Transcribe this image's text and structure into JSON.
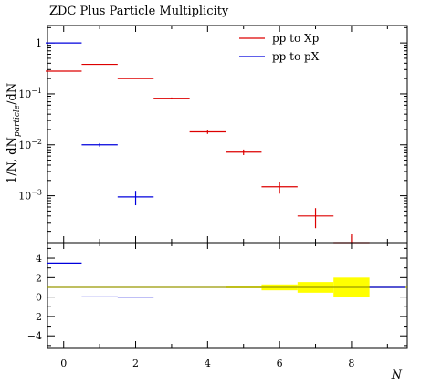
{
  "chart_data": {
    "type": "line",
    "title": "ZDC Plus Particle Multiplicity",
    "xlabel": "N",
    "ylabel_prefix": "1/N, dN",
    "ylabel_subscript": "particle",
    "ylabel_suffix": "/dN",
    "xlim": [
      -0.45,
      9.55
    ],
    "main_panel": {
      "yscale": "log",
      "ylim": [
        0.00012,
        2.2
      ],
      "x_ticks": [
        0,
        2,
        4,
        6,
        8
      ],
      "y_ticks": [
        {
          "value": 1,
          "label": "1"
        },
        {
          "value": 0.1,
          "label": "10",
          "exp": "−1"
        },
        {
          "value": 0.01,
          "label": "10",
          "exp": "−2"
        },
        {
          "value": 0.001,
          "label": "10",
          "exp": "−3"
        }
      ],
      "series": [
        {
          "name": "pp to Xp",
          "color": "#dd0000",
          "points": [
            {
              "x": 0,
              "y": 0.28,
              "yerr": 0
            },
            {
              "x": 1,
              "y": 0.38,
              "yerr": 0
            },
            {
              "x": 2,
              "y": 0.2,
              "yerr": 0
            },
            {
              "x": 3,
              "y": 0.082,
              "yerr": 0.003
            },
            {
              "x": 4,
              "y": 0.018,
              "yerr": 0.0016
            },
            {
              "x": 5,
              "y": 0.0072,
              "yerr": 0.0009
            },
            {
              "x": 6,
              "y": 0.0015,
              "yerr": 0.0004
            },
            {
              "x": 7,
              "y": 0.0004,
              "yerr": 0.00017
            },
            {
              "x": 8,
              "y": 0.00012,
              "yerr": 6e-05
            }
          ]
        },
        {
          "name": "pp to pX",
          "color": "#0000dd",
          "points": [
            {
              "x": 0,
              "y": 1.0,
              "yerr": 0
            },
            {
              "x": 1,
              "y": 0.01,
              "yerr": 0.0008
            },
            {
              "x": 2,
              "y": 0.00095,
              "yerr": 0.0003
            }
          ]
        }
      ]
    },
    "ratio_panel": {
      "ylim": [
        -5.2,
        5.6
      ],
      "y_ticks": [
        4,
        2,
        0,
        -2,
        -4
      ],
      "y_tick_labels": [
        "4",
        "2",
        "0",
        "−2",
        "−4"
      ],
      "reference_value": 1,
      "band_color": "#ffff00",
      "reference_color": "#999900",
      "band": [
        {
          "x": 5,
          "half_width": 0.08
        },
        {
          "x": 6,
          "half_width": 0.3
        },
        {
          "x": 7,
          "half_width": 0.55
        },
        {
          "x": 8,
          "half_width": 1.0
        }
      ],
      "series": [
        {
          "color": "#0000dd",
          "points": [
            {
              "x": 0,
              "y": 3.5
            },
            {
              "x": 1,
              "y": 0.02
            },
            {
              "x": 2,
              "y": 0.0
            },
            {
              "x": 9,
              "y": 1.0
            }
          ]
        }
      ]
    }
  }
}
